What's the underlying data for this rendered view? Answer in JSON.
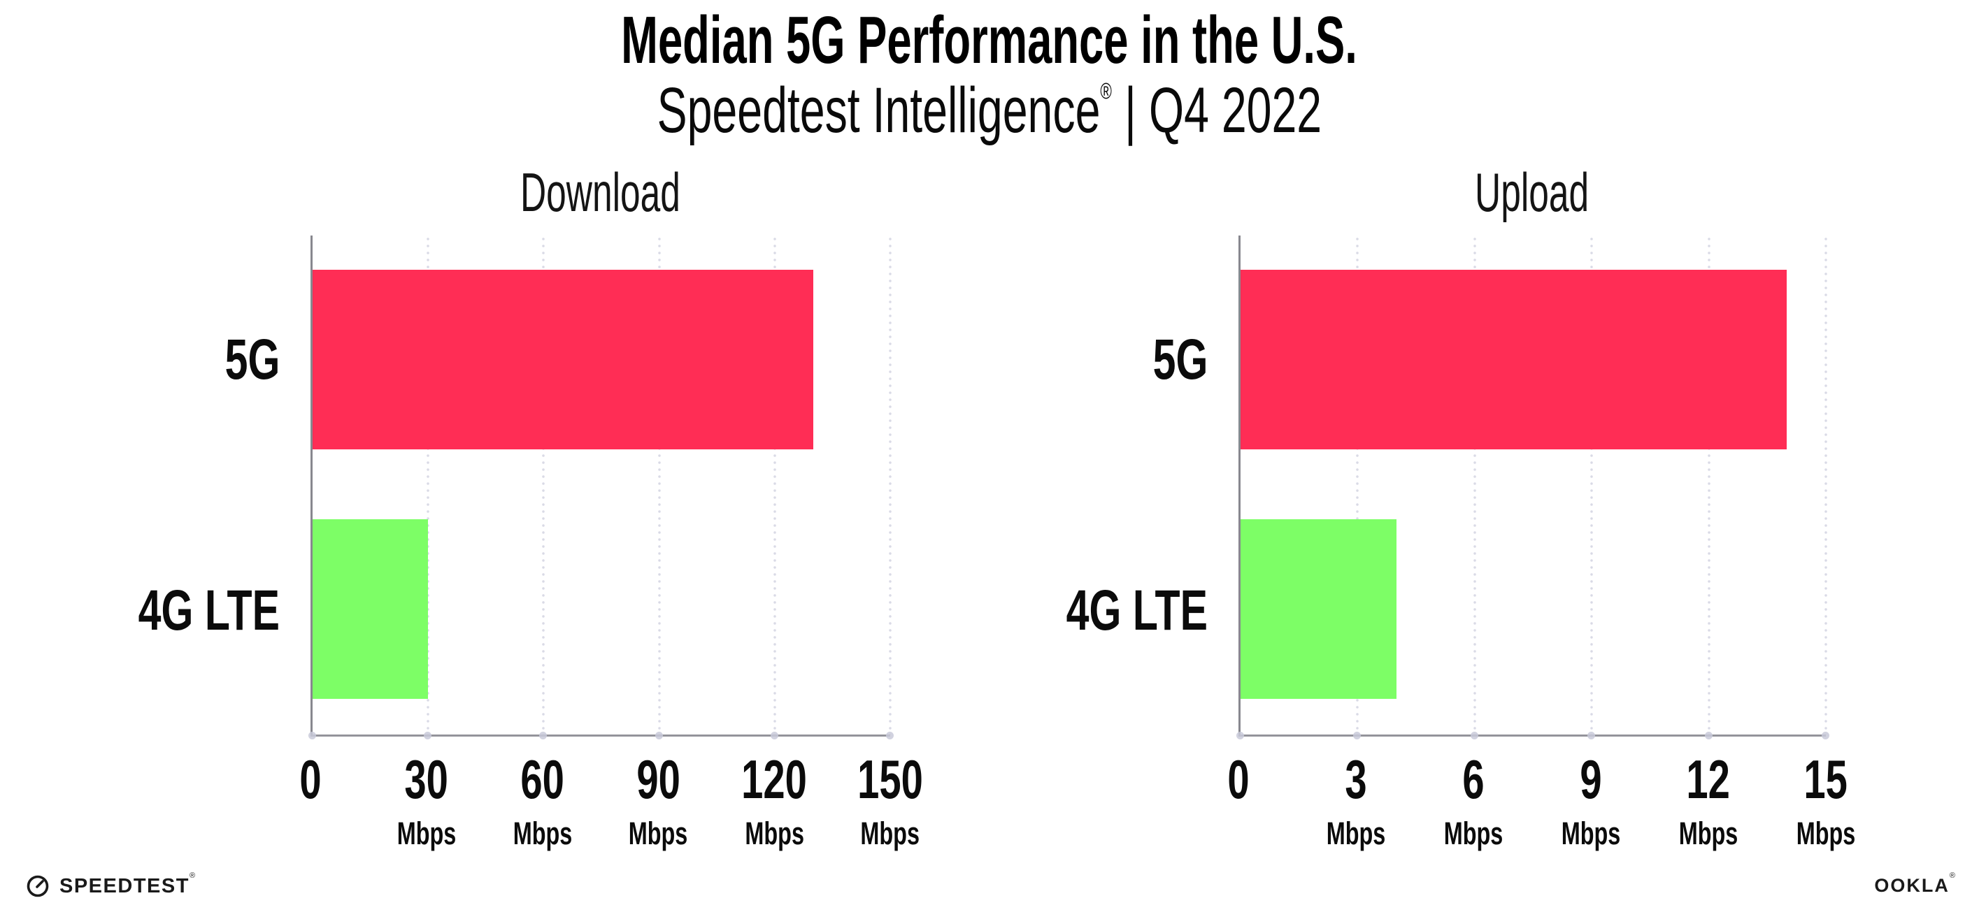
{
  "header": {
    "title": "Median 5G Performance in the U.S.",
    "subtitle": {
      "brand": "Speedtest Intelligence",
      "reg": "®",
      "sep": "|",
      "period": "Q4 2022"
    }
  },
  "chart_data": [
    {
      "type": "bar",
      "orientation": "horizontal",
      "title": "Download",
      "categories": [
        "5G",
        "4G LTE"
      ],
      "values": [
        130,
        30
      ],
      "unit": "Mbps",
      "xlim": [
        0,
        150
      ],
      "xticks": [
        0,
        30,
        60,
        90,
        120,
        150
      ],
      "bar_colors": [
        "#FF2D55",
        "#7DFE66"
      ],
      "grid": "dotted-vertical",
      "legend": "none"
    },
    {
      "type": "bar",
      "orientation": "horizontal",
      "title": "Upload",
      "categories": [
        "5G",
        "4G LTE"
      ],
      "values": [
        14,
        4
      ],
      "unit": "Mbps",
      "xlim": [
        0,
        15
      ],
      "xticks": [
        0,
        3,
        6,
        9,
        12,
        15
      ],
      "bar_colors": [
        "#FF2D55",
        "#7DFE66"
      ],
      "grid": "dotted-vertical",
      "legend": "none"
    }
  ],
  "colors": {
    "bar_5g": "#FF2D55",
    "bar_4g_lte": "#7DFE66",
    "axis": "#8e8e94",
    "gridline": "#d9dae6",
    "text": "#0b0b0b",
    "background": "#ffffff"
  },
  "footer": {
    "speedtest": {
      "text": "SPEEDTEST",
      "reg": "®"
    },
    "ookla": {
      "text": "OOKLA",
      "reg": "®"
    }
  }
}
